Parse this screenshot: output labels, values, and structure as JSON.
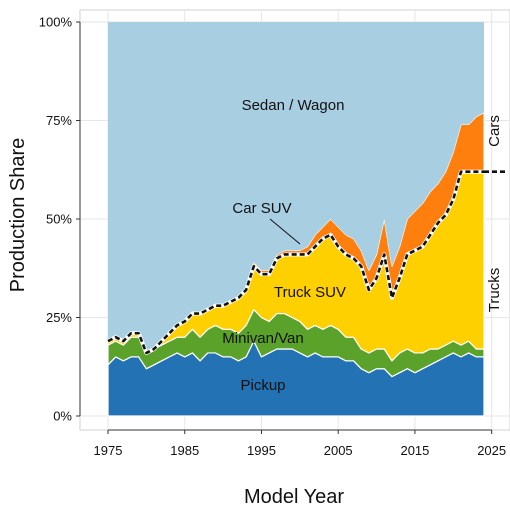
{
  "chart_data": {
    "type": "area",
    "stacked": true,
    "xlabel": "Model Year",
    "ylabel": "Production Share",
    "xlim": [
      1975,
      2024
    ],
    "ylim": [
      0,
      100
    ],
    "x_ticks": [
      1975,
      1985,
      1995,
      2005,
      2015,
      2025
    ],
    "y_ticks": [
      0,
      25,
      50,
      75,
      100
    ],
    "y_tick_labels": [
      "0%",
      "25%",
      "50%",
      "75%",
      "100%"
    ],
    "grid": true,
    "x": [
      1975,
      1976,
      1977,
      1978,
      1979,
      1980,
      1981,
      1982,
      1983,
      1984,
      1985,
      1986,
      1987,
      1988,
      1989,
      1990,
      1991,
      1992,
      1993,
      1994,
      1995,
      1996,
      1997,
      1998,
      1999,
      2000,
      2001,
      2002,
      2003,
      2004,
      2005,
      2006,
      2007,
      2008,
      2009,
      2010,
      2011,
      2012,
      2013,
      2014,
      2015,
      2016,
      2017,
      2018,
      2019,
      2020,
      2021,
      2022,
      2023,
      2024
    ],
    "series": [
      {
        "name": "Pickup",
        "color": "#2272b4",
        "values": [
          13,
          15,
          14,
          15,
          15,
          12,
          13,
          14,
          15,
          16,
          15,
          16,
          14,
          16,
          16,
          15,
          15,
          14,
          15,
          19,
          15,
          16,
          17,
          17,
          17,
          16,
          15,
          16,
          15,
          15,
          15,
          14,
          14,
          12,
          11,
          12,
          12,
          10,
          11,
          12,
          11,
          12,
          13,
          14,
          15,
          16,
          15,
          16,
          15,
          15
        ]
      },
      {
        "name": "Minivan/Van",
        "color": "#5ba22a",
        "values": [
          5,
          4,
          4,
          5,
          5,
          4,
          4,
          4,
          4,
          4,
          5,
          6,
          6,
          6,
          7,
          7,
          7,
          7,
          8,
          8,
          10,
          8,
          9,
          9,
          8,
          8,
          7,
          7,
          7,
          8,
          7,
          6,
          6,
          5,
          5,
          5,
          5,
          4,
          5,
          5,
          5,
          4,
          4,
          3,
          3,
          3,
          3,
          3,
          2,
          2
        ]
      },
      {
        "name": "Truck SUV",
        "color": "#ffd000",
        "values": [
          1,
          1,
          1,
          1,
          1,
          0,
          0,
          1,
          2,
          3,
          4,
          4,
          6,
          5,
          5,
          6,
          7,
          9,
          9,
          11,
          11,
          12,
          14,
          15,
          16,
          17,
          19,
          20,
          23,
          23,
          21,
          21,
          20,
          21,
          16,
          18,
          24,
          16,
          19,
          24,
          26,
          27,
          29,
          32,
          33,
          36,
          44,
          43,
          45,
          45
        ]
      },
      {
        "name": "Car SUV",
        "color": "#ff7f0e",
        "values": [
          0,
          0,
          0,
          0,
          0,
          0,
          0,
          0,
          0,
          0,
          0,
          0,
          0,
          0,
          0,
          0,
          0,
          0,
          0,
          1,
          1,
          1,
          1,
          1,
          1,
          1,
          2,
          3,
          3,
          4,
          5,
          5,
          5,
          4,
          5,
          6,
          9,
          8,
          8,
          9,
          10,
          11,
          11,
          10,
          11,
          12,
          12,
          12,
          14,
          15
        ]
      },
      {
        "name": "Sedan / Wagon",
        "color": "#a8cee2",
        "values": [
          81,
          80,
          81,
          79,
          79,
          84,
          83,
          81,
          79,
          77,
          76,
          74,
          74,
          73,
          72,
          72,
          71,
          70,
          68,
          61,
          63,
          63,
          59,
          58,
          58,
          58,
          57,
          54,
          52,
          50,
          52,
          54,
          55,
          58,
          63,
          59,
          50,
          62,
          57,
          50,
          48,
          46,
          43,
          41,
          38,
          33,
          26,
          26,
          24,
          23
        ]
      }
    ],
    "separator": {
      "name": "Trucks / Cars boundary",
      "style": "dashed",
      "values": [
        19,
        20,
        19,
        21,
        21,
        16,
        17,
        19,
        21,
        23,
        24,
        26,
        26,
        27,
        28,
        28,
        29,
        30,
        32,
        38,
        36,
        36,
        40,
        41,
        41,
        41,
        41,
        43,
        45,
        46,
        43,
        41,
        40,
        38,
        32,
        35,
        41,
        30,
        35,
        41,
        42,
        43,
        46,
        49,
        51,
        55,
        62,
        62,
        62,
        62
      ]
    },
    "annotations": {
      "sedan_wagon": "Sedan / Wagon",
      "car_suv": "Car SUV",
      "truck_suv": "Truck SUV",
      "minivan_van": "Minivan/Van",
      "pickup": "Pickup",
      "cars": "Cars",
      "trucks": "Trucks"
    }
  }
}
